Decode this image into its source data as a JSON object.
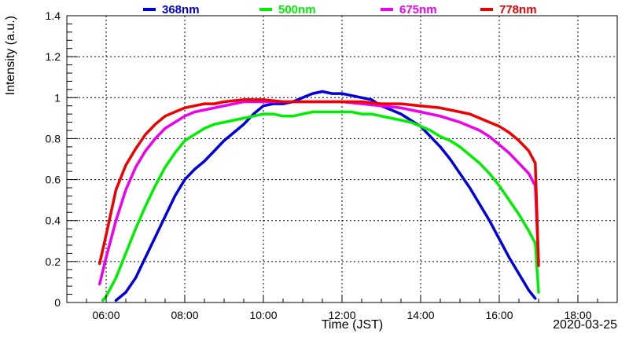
{
  "chart_data": {
    "type": "line",
    "xlabel": "Time (JST)",
    "ylabel": "Intensity (a.u.)",
    "date": "2020-03-25",
    "xlim": [
      "05:00",
      "19:00"
    ],
    "ylim": [
      0,
      1.4
    ],
    "grid": true,
    "legend_position": "top",
    "x_ticks": [
      "06:00",
      "08:00",
      "10:00",
      "12:00",
      "14:00",
      "16:00",
      "18:00"
    ],
    "y_ticks": [
      "0",
      "0.2",
      "0.4",
      "0.6",
      "0.8",
      "1",
      "1.2",
      "1.4"
    ],
    "series": [
      {
        "name": "368nm",
        "color": "#0000dd",
        "points": [
          [
            "06:15",
            0.01
          ],
          [
            "06:30",
            0.05
          ],
          [
            "06:45",
            0.12
          ],
          [
            "07:00",
            0.22
          ],
          [
            "07:15",
            0.32
          ],
          [
            "07:30",
            0.42
          ],
          [
            "07:45",
            0.52
          ],
          [
            "08:00",
            0.6
          ],
          [
            "08:15",
            0.65
          ],
          [
            "08:30",
            0.69
          ],
          [
            "08:45",
            0.74
          ],
          [
            "09:00",
            0.79
          ],
          [
            "09:15",
            0.83
          ],
          [
            "09:30",
            0.87
          ],
          [
            "09:45",
            0.92
          ],
          [
            "10:00",
            0.96
          ],
          [
            "10:15",
            0.97
          ],
          [
            "10:30",
            0.97
          ],
          [
            "10:45",
            0.98
          ],
          [
            "11:00",
            1.0
          ],
          [
            "11:15",
            1.02
          ],
          [
            "11:30",
            1.03
          ],
          [
            "11:45",
            1.02
          ],
          [
            "12:00",
            1.02
          ],
          [
            "12:15",
            1.01
          ],
          [
            "12:30",
            1.0
          ],
          [
            "12:45",
            0.99
          ],
          [
            "13:00",
            0.96
          ],
          [
            "13:15",
            0.94
          ],
          [
            "13:30",
            0.92
          ],
          [
            "13:45",
            0.89
          ],
          [
            "14:00",
            0.86
          ],
          [
            "14:15",
            0.81
          ],
          [
            "14:30",
            0.76
          ],
          [
            "14:45",
            0.7
          ],
          [
            "15:00",
            0.63
          ],
          [
            "15:15",
            0.56
          ],
          [
            "15:30",
            0.48
          ],
          [
            "15:45",
            0.4
          ],
          [
            "16:00",
            0.31
          ],
          [
            "16:15",
            0.22
          ],
          [
            "16:30",
            0.14
          ],
          [
            "16:45",
            0.06
          ],
          [
            "16:55",
            0.02
          ]
        ]
      },
      {
        "name": "500nm",
        "color": "#00ee00",
        "points": [
          [
            "05:55",
            0.01
          ],
          [
            "06:00",
            0.03
          ],
          [
            "06:15",
            0.12
          ],
          [
            "06:30",
            0.24
          ],
          [
            "06:45",
            0.36
          ],
          [
            "07:00",
            0.47
          ],
          [
            "07:15",
            0.57
          ],
          [
            "07:30",
            0.66
          ],
          [
            "07:45",
            0.73
          ],
          [
            "08:00",
            0.79
          ],
          [
            "08:15",
            0.82
          ],
          [
            "08:30",
            0.85
          ],
          [
            "08:45",
            0.87
          ],
          [
            "09:00",
            0.88
          ],
          [
            "09:15",
            0.89
          ],
          [
            "09:30",
            0.9
          ],
          [
            "09:45",
            0.91
          ],
          [
            "10:00",
            0.92
          ],
          [
            "10:15",
            0.92
          ],
          [
            "10:30",
            0.91
          ],
          [
            "10:45",
            0.91
          ],
          [
            "11:00",
            0.92
          ],
          [
            "11:15",
            0.93
          ],
          [
            "11:30",
            0.93
          ],
          [
            "11:45",
            0.93
          ],
          [
            "12:00",
            0.93
          ],
          [
            "12:15",
            0.93
          ],
          [
            "12:30",
            0.92
          ],
          [
            "12:45",
            0.92
          ],
          [
            "13:00",
            0.91
          ],
          [
            "13:15",
            0.9
          ],
          [
            "13:30",
            0.89
          ],
          [
            "13:45",
            0.88
          ],
          [
            "14:00",
            0.86
          ],
          [
            "14:15",
            0.84
          ],
          [
            "14:30",
            0.81
          ],
          [
            "14:45",
            0.79
          ],
          [
            "15:00",
            0.76
          ],
          [
            "15:15",
            0.72
          ],
          [
            "15:30",
            0.68
          ],
          [
            "15:45",
            0.63
          ],
          [
            "16:00",
            0.57
          ],
          [
            "16:15",
            0.5
          ],
          [
            "16:30",
            0.43
          ],
          [
            "16:45",
            0.35
          ],
          [
            "16:55",
            0.29
          ],
          [
            "17:00",
            0.05
          ]
        ]
      },
      {
        "name": "675nm",
        "color": "#ee00ee",
        "points": [
          [
            "05:50",
            0.09
          ],
          [
            "06:00",
            0.22
          ],
          [
            "06:15",
            0.4
          ],
          [
            "06:30",
            0.55
          ],
          [
            "06:45",
            0.66
          ],
          [
            "07:00",
            0.74
          ],
          [
            "07:15",
            0.8
          ],
          [
            "07:30",
            0.85
          ],
          [
            "07:45",
            0.88
          ],
          [
            "08:00",
            0.91
          ],
          [
            "08:15",
            0.93
          ],
          [
            "08:30",
            0.94
          ],
          [
            "08:45",
            0.95
          ],
          [
            "09:00",
            0.96
          ],
          [
            "09:15",
            0.97
          ],
          [
            "09:30",
            0.98
          ],
          [
            "09:45",
            0.98
          ],
          [
            "10:00",
            0.98
          ],
          [
            "10:30",
            0.98
          ],
          [
            "11:00",
            0.98
          ],
          [
            "11:30",
            0.98
          ],
          [
            "12:00",
            0.98
          ],
          [
            "12:30",
            0.97
          ],
          [
            "13:00",
            0.96
          ],
          [
            "13:30",
            0.95
          ],
          [
            "14:00",
            0.93
          ],
          [
            "14:30",
            0.91
          ],
          [
            "15:00",
            0.88
          ],
          [
            "15:15",
            0.86
          ],
          [
            "15:30",
            0.84
          ],
          [
            "15:45",
            0.81
          ],
          [
            "16:00",
            0.77
          ],
          [
            "16:15",
            0.73
          ],
          [
            "16:30",
            0.68
          ],
          [
            "16:45",
            0.63
          ],
          [
            "16:55",
            0.57
          ],
          [
            "17:00",
            0.2
          ]
        ]
      },
      {
        "name": "778nm",
        "color": "#ee0000",
        "points": [
          [
            "05:50",
            0.19
          ],
          [
            "06:00",
            0.33
          ],
          [
            "06:15",
            0.55
          ],
          [
            "06:30",
            0.67
          ],
          [
            "06:45",
            0.75
          ],
          [
            "07:00",
            0.82
          ],
          [
            "07:15",
            0.87
          ],
          [
            "07:30",
            0.91
          ],
          [
            "07:45",
            0.93
          ],
          [
            "08:00",
            0.95
          ],
          [
            "08:15",
            0.96
          ],
          [
            "08:30",
            0.97
          ],
          [
            "08:45",
            0.97
          ],
          [
            "09:00",
            0.98
          ],
          [
            "09:30",
            0.99
          ],
          [
            "10:00",
            0.99
          ],
          [
            "10:30",
            0.98
          ],
          [
            "11:00",
            0.98
          ],
          [
            "11:30",
            0.98
          ],
          [
            "12:00",
            0.98
          ],
          [
            "12:30",
            0.98
          ],
          [
            "13:00",
            0.97
          ],
          [
            "13:30",
            0.97
          ],
          [
            "14:00",
            0.96
          ],
          [
            "14:30",
            0.95
          ],
          [
            "15:00",
            0.93
          ],
          [
            "15:15",
            0.92
          ],
          [
            "15:30",
            0.9
          ],
          [
            "15:45",
            0.88
          ],
          [
            "16:00",
            0.86
          ],
          [
            "16:15",
            0.83
          ],
          [
            "16:30",
            0.79
          ],
          [
            "16:45",
            0.74
          ],
          [
            "16:55",
            0.68
          ],
          [
            "17:00",
            0.18
          ]
        ]
      }
    ]
  }
}
